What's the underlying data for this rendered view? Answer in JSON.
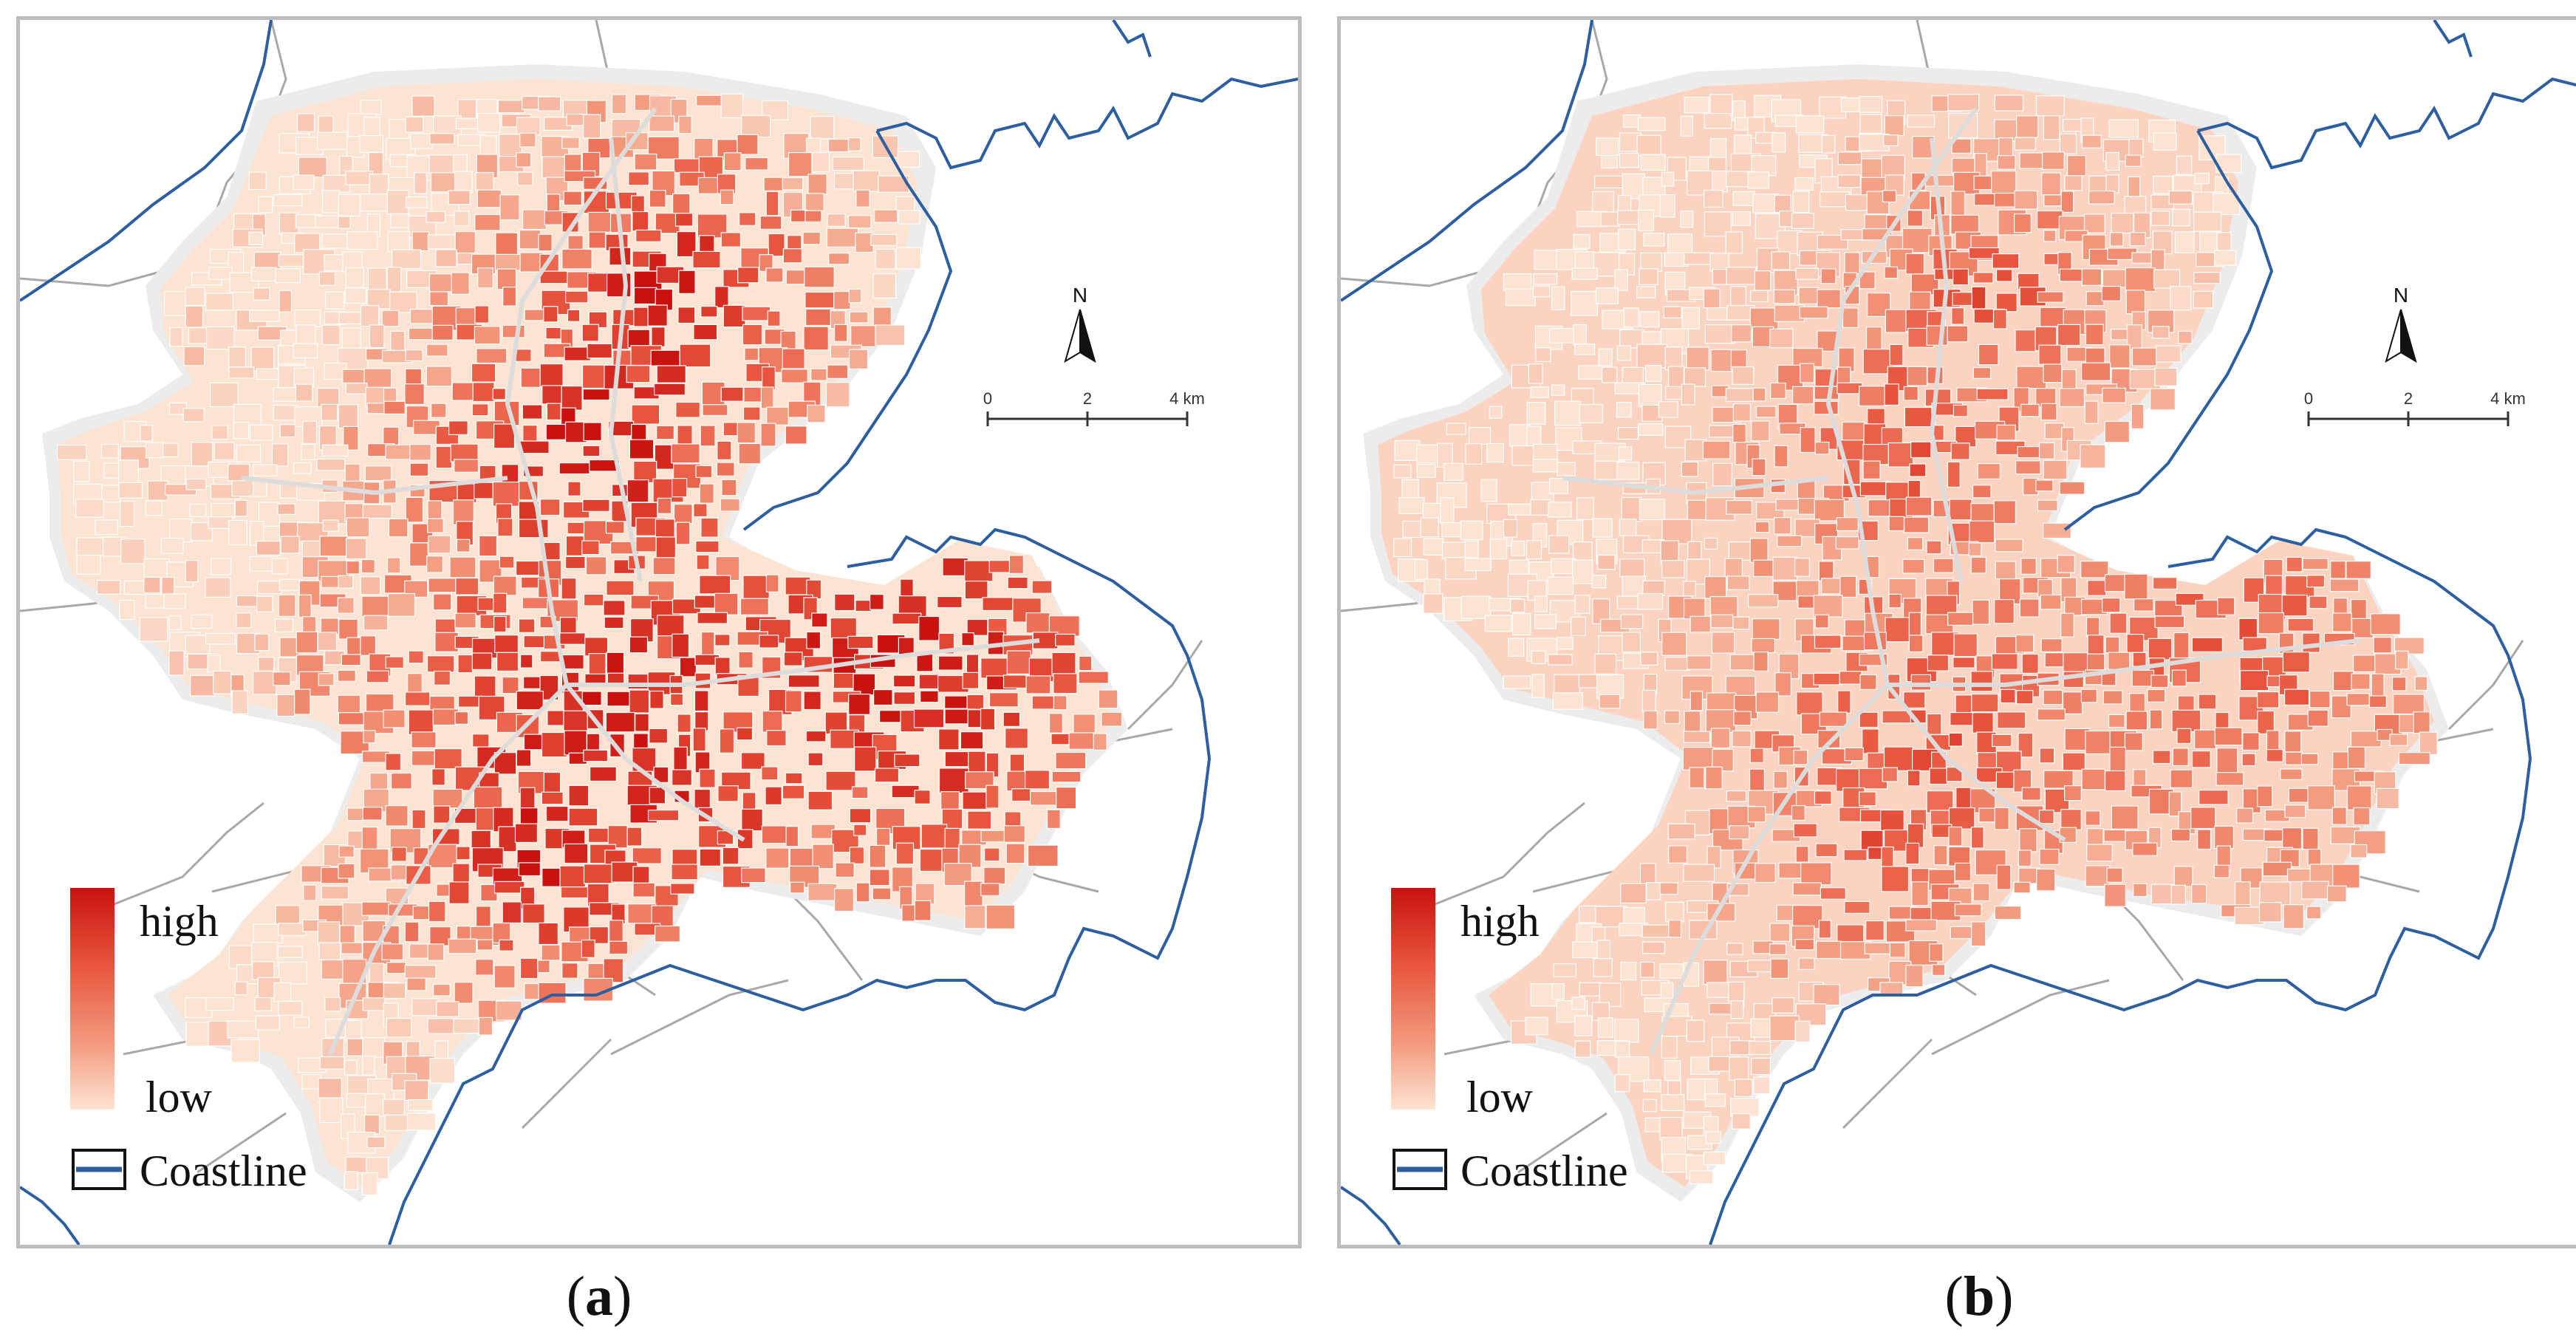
{
  "panels": [
    {
      "id": "a",
      "label_open": "(",
      "label_letter": "a",
      "label_close": ")",
      "intensity": 1.0
    },
    {
      "id": "b",
      "label_open": "(",
      "label_letter": "b",
      "label_close": ")",
      "intensity": 0.72
    }
  ],
  "legend": {
    "high_label": "high",
    "low_label": "low",
    "coastline_label": "Coastline",
    "ramp_colors": [
      "#c9120f",
      "#e8553e",
      "#f39a7e",
      "#fde3d2"
    ]
  },
  "north_arrow": {
    "label": "N"
  },
  "scale_bar": {
    "ticks": [
      "0",
      "2",
      "4 km"
    ]
  },
  "colors": {
    "coastline": "#2d5fa0",
    "boundary": "#a8a8a8",
    "frame": "#bdbdbd",
    "urban_base": "#fde3d2",
    "urban_shadow": "#ececec"
  }
}
